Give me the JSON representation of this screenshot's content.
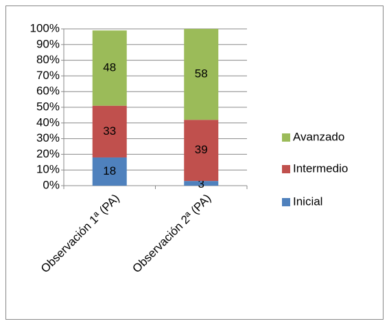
{
  "chart_data": {
    "type": "stacked_bar",
    "categories": [
      "Observación 1ª (PA)",
      "Observación 2ª (PA)"
    ],
    "series": [
      {
        "name": "Inicial",
        "color": "#4f81bd",
        "values": [
          18,
          3
        ]
      },
      {
        "name": "Intermedio",
        "color": "#c0504d",
        "values": [
          33,
          39
        ]
      },
      {
        "name": "Avanzado",
        "color": "#9bbb59",
        "values": [
          48,
          58
        ]
      }
    ],
    "ylim": [
      0,
      100
    ],
    "yticks": [
      {
        "value": 0,
        "label": "0%"
      },
      {
        "value": 10,
        "label": "10%"
      },
      {
        "value": 20,
        "label": "20%"
      },
      {
        "value": 30,
        "label": "30%"
      },
      {
        "value": 40,
        "label": "40%"
      },
      {
        "value": 50,
        "label": "50%"
      },
      {
        "value": 60,
        "label": "60%"
      },
      {
        "value": 70,
        "label": "70%"
      },
      {
        "value": 80,
        "label": "80%"
      },
      {
        "value": 90,
        "label": "90%"
      },
      {
        "value": 100,
        "label": "100%"
      }
    ],
    "grid": true,
    "legend": "right"
  }
}
